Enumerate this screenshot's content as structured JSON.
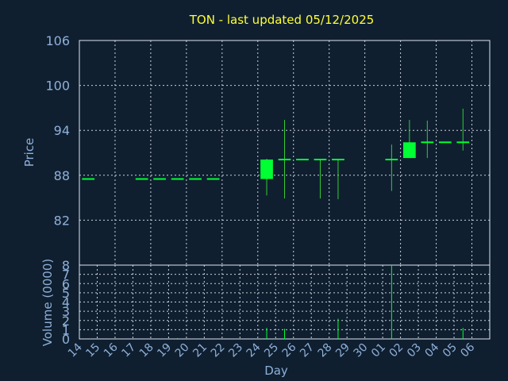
{
  "chart_data": [
    {
      "type": "candlestick",
      "title": "TON - last updated 05/12/2025",
      "ylabel": "Price",
      "ylim": [
        76,
        106
      ],
      "yticks": [
        "106",
        "100",
        "94",
        "88",
        "82"
      ],
      "colors": {
        "up": "#00ff33",
        "wick": "#33cc33",
        "grid": "#c8d0d8",
        "text": "#8fb0d8",
        "title": "#ffff33",
        "background": "#0f1f30"
      },
      "candles": [
        {
          "x": "14",
          "open": 87.5,
          "high": 87.5,
          "low": 87.5,
          "close": 87.5
        },
        {
          "x": "17",
          "open": 87.5,
          "high": 87.5,
          "low": 87.5,
          "close": 87.5
        },
        {
          "x": "18",
          "open": 87.5,
          "high": 87.5,
          "low": 87.5,
          "close": 87.5
        },
        {
          "x": "19",
          "open": 87.5,
          "high": 87.5,
          "low": 87.5,
          "close": 87.5
        },
        {
          "x": "20",
          "open": 87.5,
          "high": 87.5,
          "low": 87.5,
          "close": 87.5
        },
        {
          "x": "21",
          "open": 87.5,
          "high": 87.5,
          "low": 87.5,
          "close": 87.5
        },
        {
          "x": "24",
          "open": 87.5,
          "high": 90.2,
          "low": 85.3,
          "close": 90.1
        },
        {
          "x": "25",
          "open": 90.1,
          "high": 95.4,
          "low": 84.9,
          "close": 90.1
        },
        {
          "x": "26",
          "open": 90.1,
          "high": 90.1,
          "low": 90.1,
          "close": 90.1
        },
        {
          "x": "27",
          "open": 90.1,
          "high": 90.2,
          "low": 84.9,
          "close": 90.1
        },
        {
          "x": "28",
          "open": 90.1,
          "high": 90.2,
          "low": 84.8,
          "close": 90.1
        },
        {
          "x": "01",
          "open": 90.1,
          "high": 92.1,
          "low": 85.9,
          "close": 90.1
        },
        {
          "x": "02",
          "open": 90.3,
          "high": 95.4,
          "low": 90.3,
          "close": 92.4
        },
        {
          "x": "03",
          "open": 92.4,
          "high": 95.3,
          "low": 90.3,
          "close": 92.4
        },
        {
          "x": "04",
          "open": 92.4,
          "high": 92.4,
          "low": 92.4,
          "close": 92.4
        },
        {
          "x": "05",
          "open": 92.4,
          "high": 96.9,
          "low": 91.3,
          "close": 92.4
        }
      ]
    },
    {
      "type": "bar",
      "ylabel": "Volume (0000)",
      "xlabel": "Day",
      "ylim": [
        0,
        8
      ],
      "yticks": [
        "8",
        "7",
        "6",
        "5",
        "4",
        "3",
        "2",
        "1",
        "0"
      ],
      "categories": [
        "14",
        "15",
        "16",
        "17",
        "18",
        "19",
        "20",
        "21",
        "22",
        "23",
        "24",
        "25",
        "26",
        "27",
        "28",
        "29",
        "30",
        "01",
        "02",
        "03",
        "04",
        "05",
        "06"
      ],
      "values": [
        0,
        0,
        0,
        0,
        0,
        0.1,
        0,
        0,
        0,
        0,
        1.2,
        1.1,
        0,
        0,
        2.2,
        0,
        0,
        8.0,
        0,
        0,
        0,
        1.2,
        0
      ]
    }
  ]
}
